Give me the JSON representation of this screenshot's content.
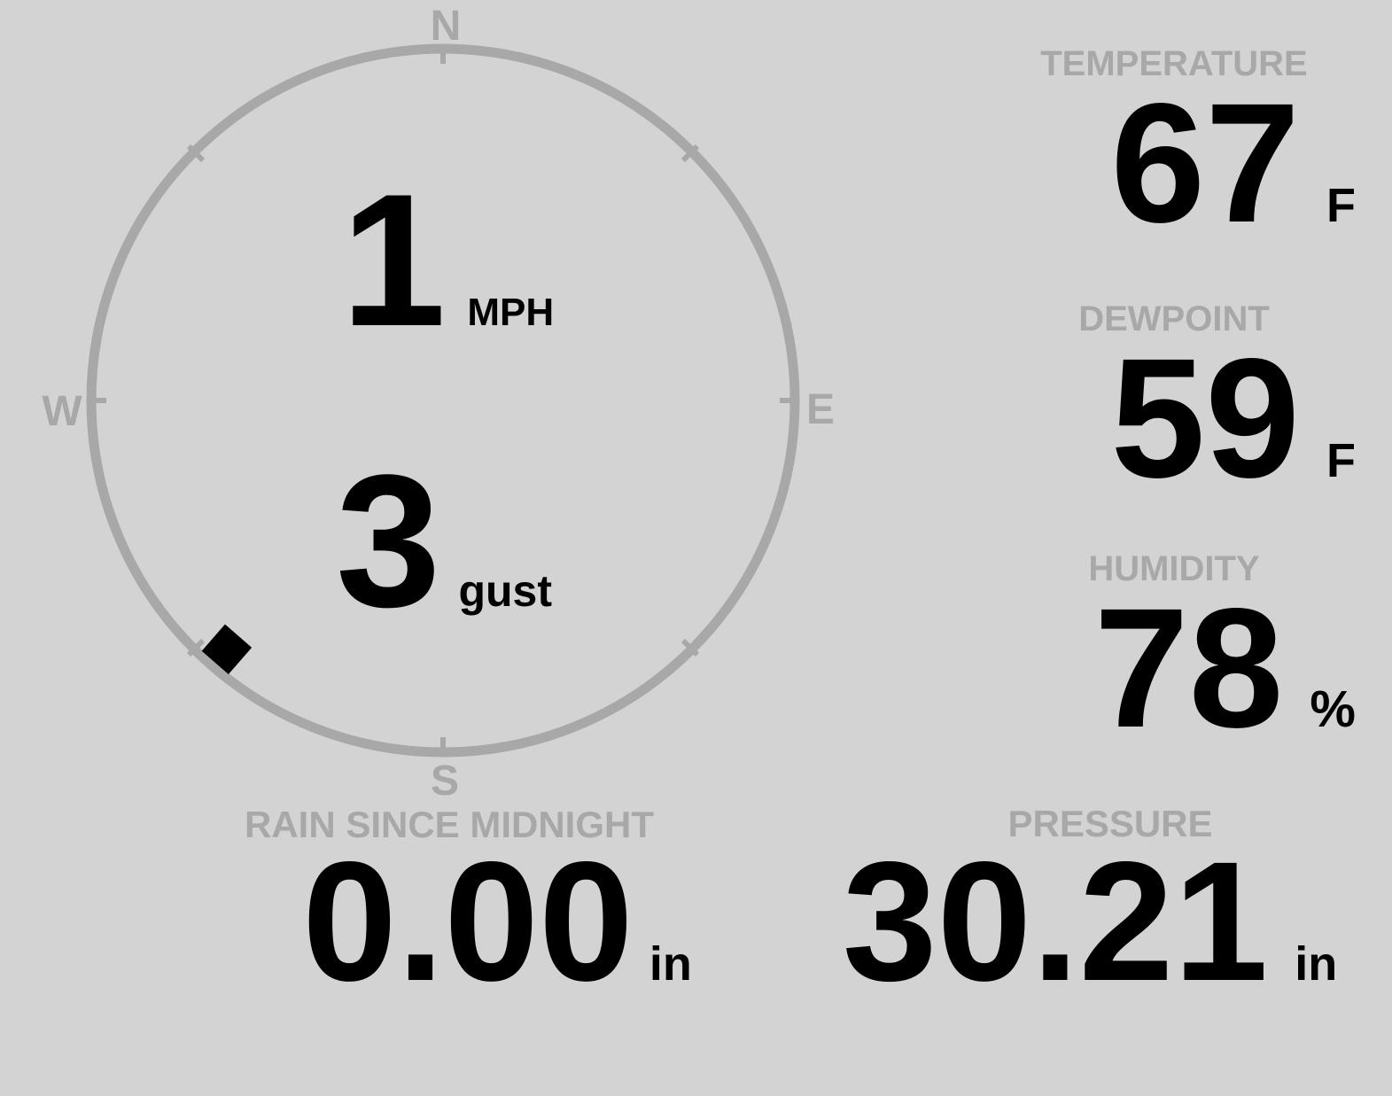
{
  "theme": {
    "background": "#d3d3d3",
    "muted": "#a8a8a8",
    "foreground": "#000000"
  },
  "wind_compass": {
    "cardinal_labels": {
      "north": "N",
      "east": "E",
      "south": "S",
      "west": "W"
    },
    "speed": {
      "value": "1",
      "unit": "MPH"
    },
    "gust": {
      "value": "3",
      "unit": "gust"
    },
    "direction_degrees": 221
  },
  "metrics": {
    "temperature": {
      "label": "TEMPERATURE",
      "value": "67",
      "unit": "F"
    },
    "dewpoint": {
      "label": "DEWPOINT",
      "value": "59",
      "unit": "F"
    },
    "humidity": {
      "label": "HUMIDITY",
      "value": "78",
      "unit": "%"
    },
    "rain": {
      "label": "RAIN SINCE MIDNIGHT",
      "value": "0.00",
      "unit": "in"
    },
    "pressure": {
      "label": "PRESSURE",
      "value": "30.21",
      "unit": "in"
    }
  }
}
